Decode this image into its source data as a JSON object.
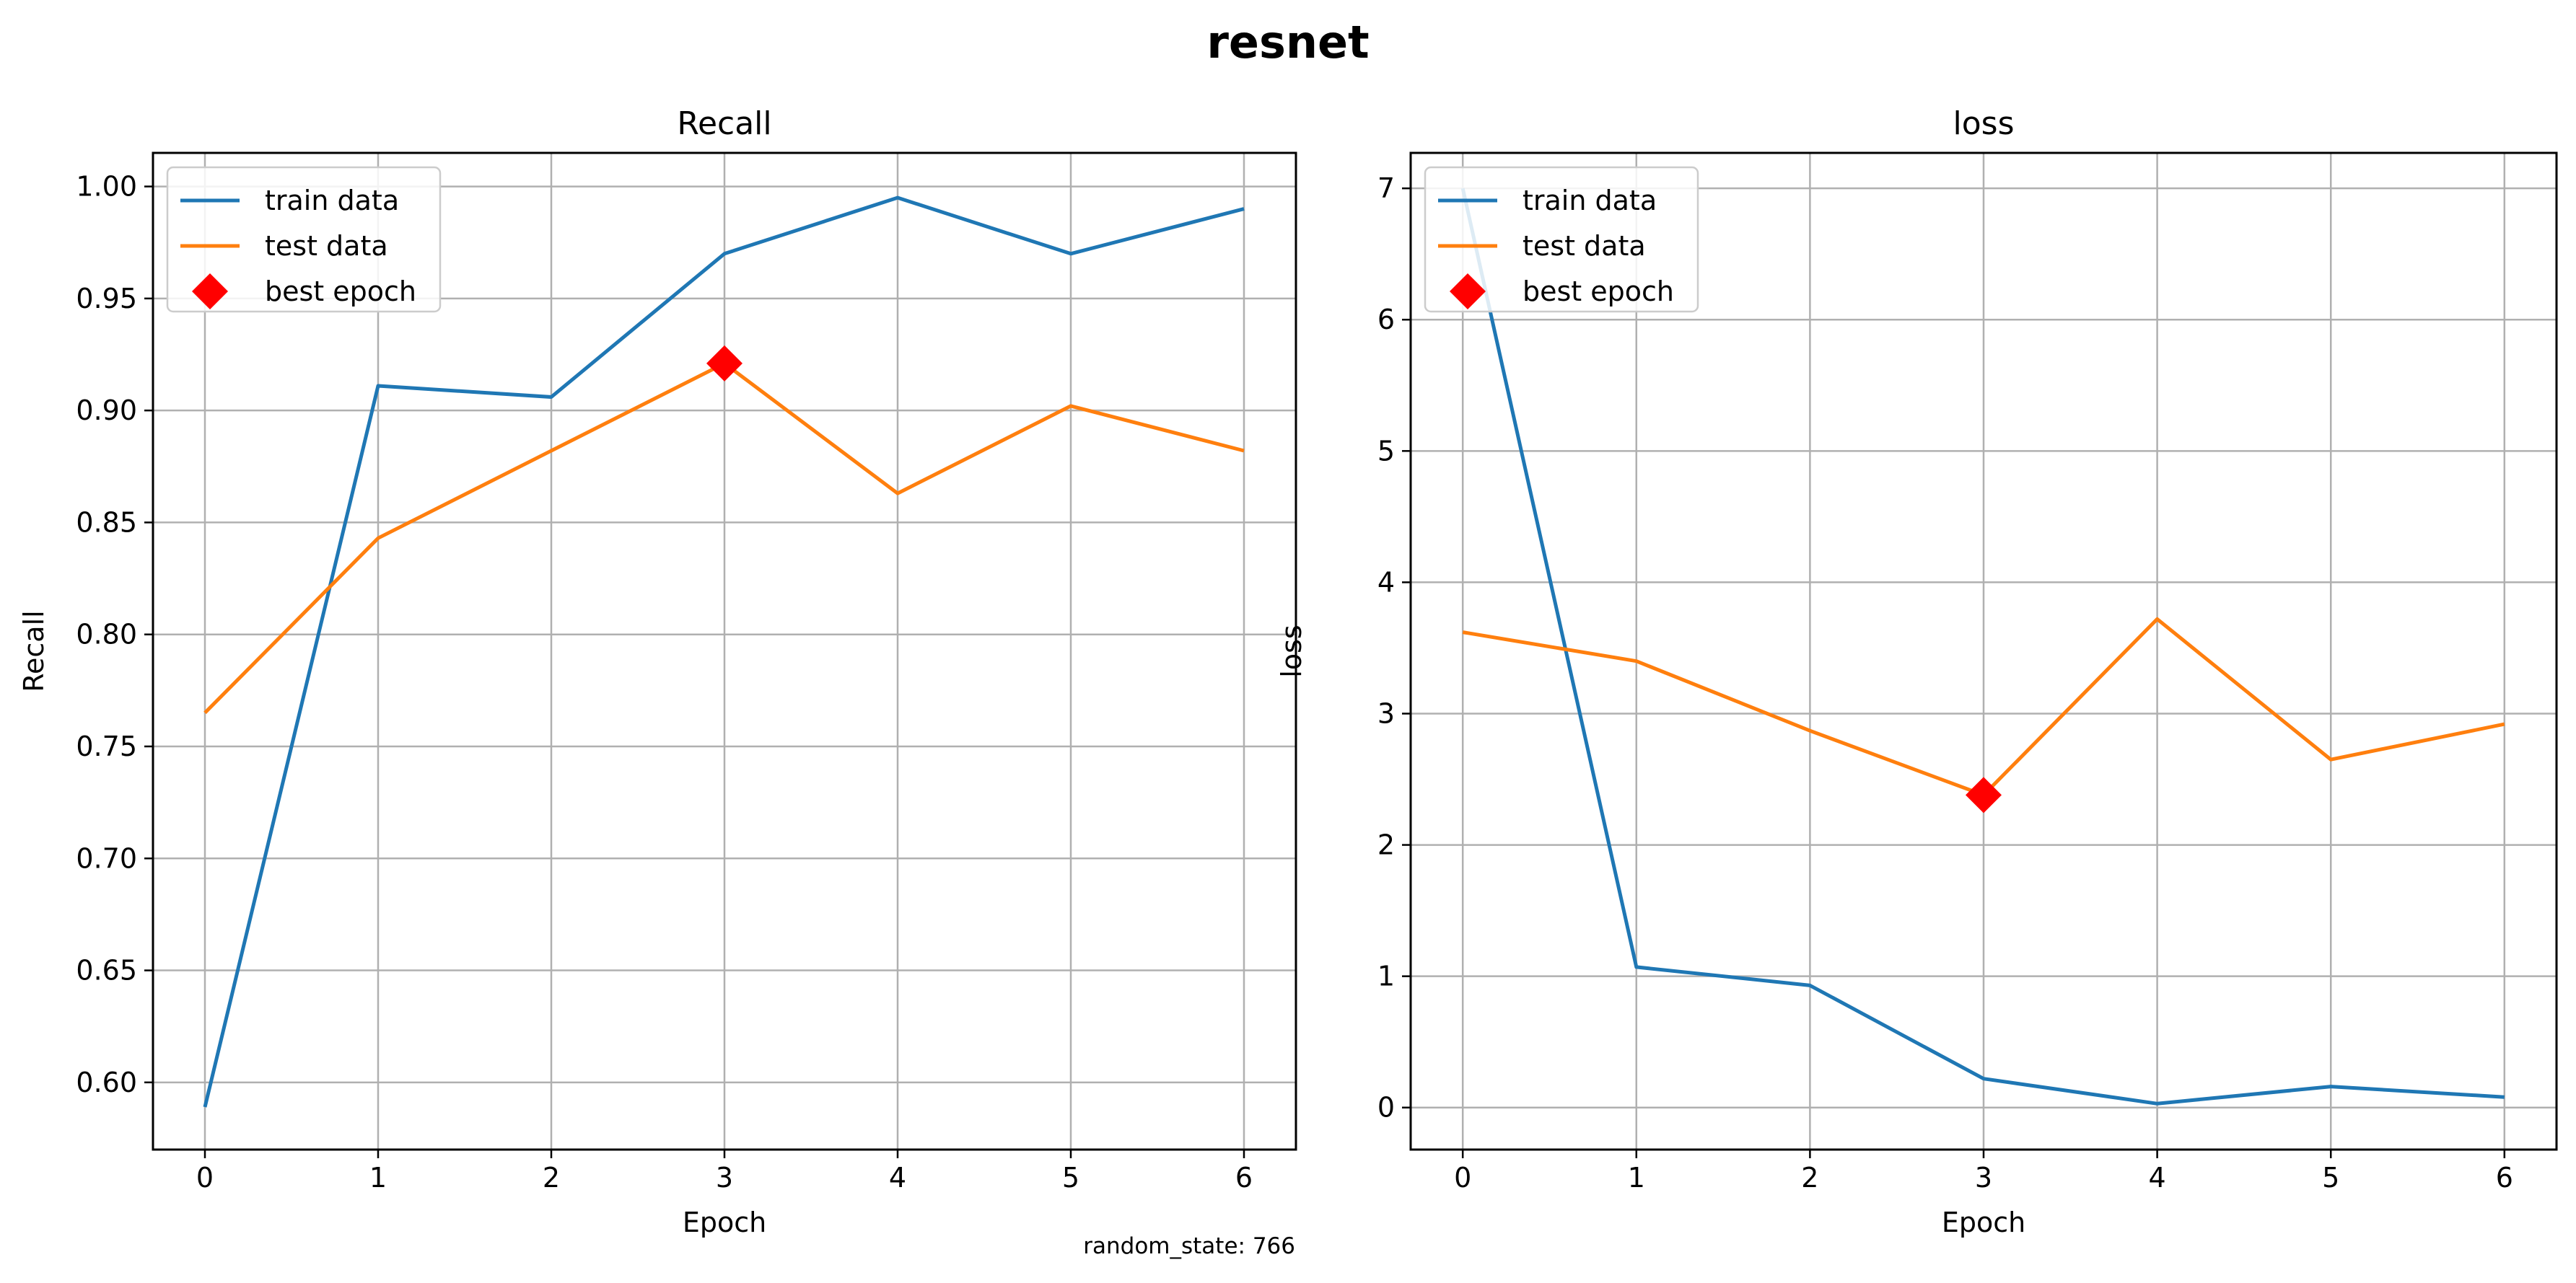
{
  "figure": {
    "suptitle": "resnet",
    "footnote": "random_state: 766"
  },
  "legend": {
    "train": "train data",
    "test": "test data",
    "best": "best epoch"
  },
  "colors": {
    "train": "#1f77b4",
    "test": "#ff7f0e",
    "best": "#ff0000",
    "grid": "#b0b0b0"
  },
  "chart_data": [
    {
      "type": "line",
      "title": "Recall",
      "xlabel": "Epoch",
      "ylabel": "Recall",
      "x": [
        0,
        1,
        2,
        3,
        4,
        5,
        6
      ],
      "xlim": [
        -0.3,
        6.3
      ],
      "ylim": [
        0.57,
        1.015
      ],
      "xticks": [
        0,
        1,
        2,
        3,
        4,
        5,
        6
      ],
      "yticks": [
        0.6,
        0.65,
        0.7,
        0.75,
        0.8,
        0.85,
        0.9,
        0.95,
        1.0
      ],
      "ytick_decimals": 2,
      "grid": true,
      "legend_position": "top-left",
      "series": [
        {
          "name": "train data",
          "key": "train",
          "values": [
            0.589,
            0.911,
            0.906,
            0.97,
            0.995,
            0.97,
            0.99
          ]
        },
        {
          "name": "test data",
          "key": "test",
          "values": [
            0.765,
            0.843,
            0.882,
            0.921,
            0.863,
            0.902,
            0.882
          ]
        }
      ],
      "best_epoch": {
        "name": "best epoch",
        "x": 3,
        "y": 0.921
      }
    },
    {
      "type": "line",
      "title": "loss",
      "xlabel": "Epoch",
      "ylabel": "loss",
      "x": [
        0,
        1,
        2,
        3,
        4,
        5,
        6
      ],
      "xlim": [
        -0.3,
        6.3
      ],
      "ylim": [
        -0.32,
        7.27
      ],
      "xticks": [
        0,
        1,
        2,
        3,
        4,
        5,
        6
      ],
      "yticks": [
        0,
        1,
        2,
        3,
        4,
        5,
        6,
        7
      ],
      "ytick_decimals": 0,
      "grid": true,
      "legend_position": "top-left",
      "series": [
        {
          "name": "train data",
          "key": "train",
          "values": [
            7.0,
            1.07,
            0.93,
            0.22,
            0.03,
            0.16,
            0.08
          ]
        },
        {
          "name": "test data",
          "key": "test",
          "values": [
            3.62,
            3.4,
            2.87,
            2.38,
            3.72,
            2.65,
            2.92
          ]
        }
      ],
      "best_epoch": {
        "name": "best epoch",
        "x": 3,
        "y": 2.38
      }
    }
  ]
}
